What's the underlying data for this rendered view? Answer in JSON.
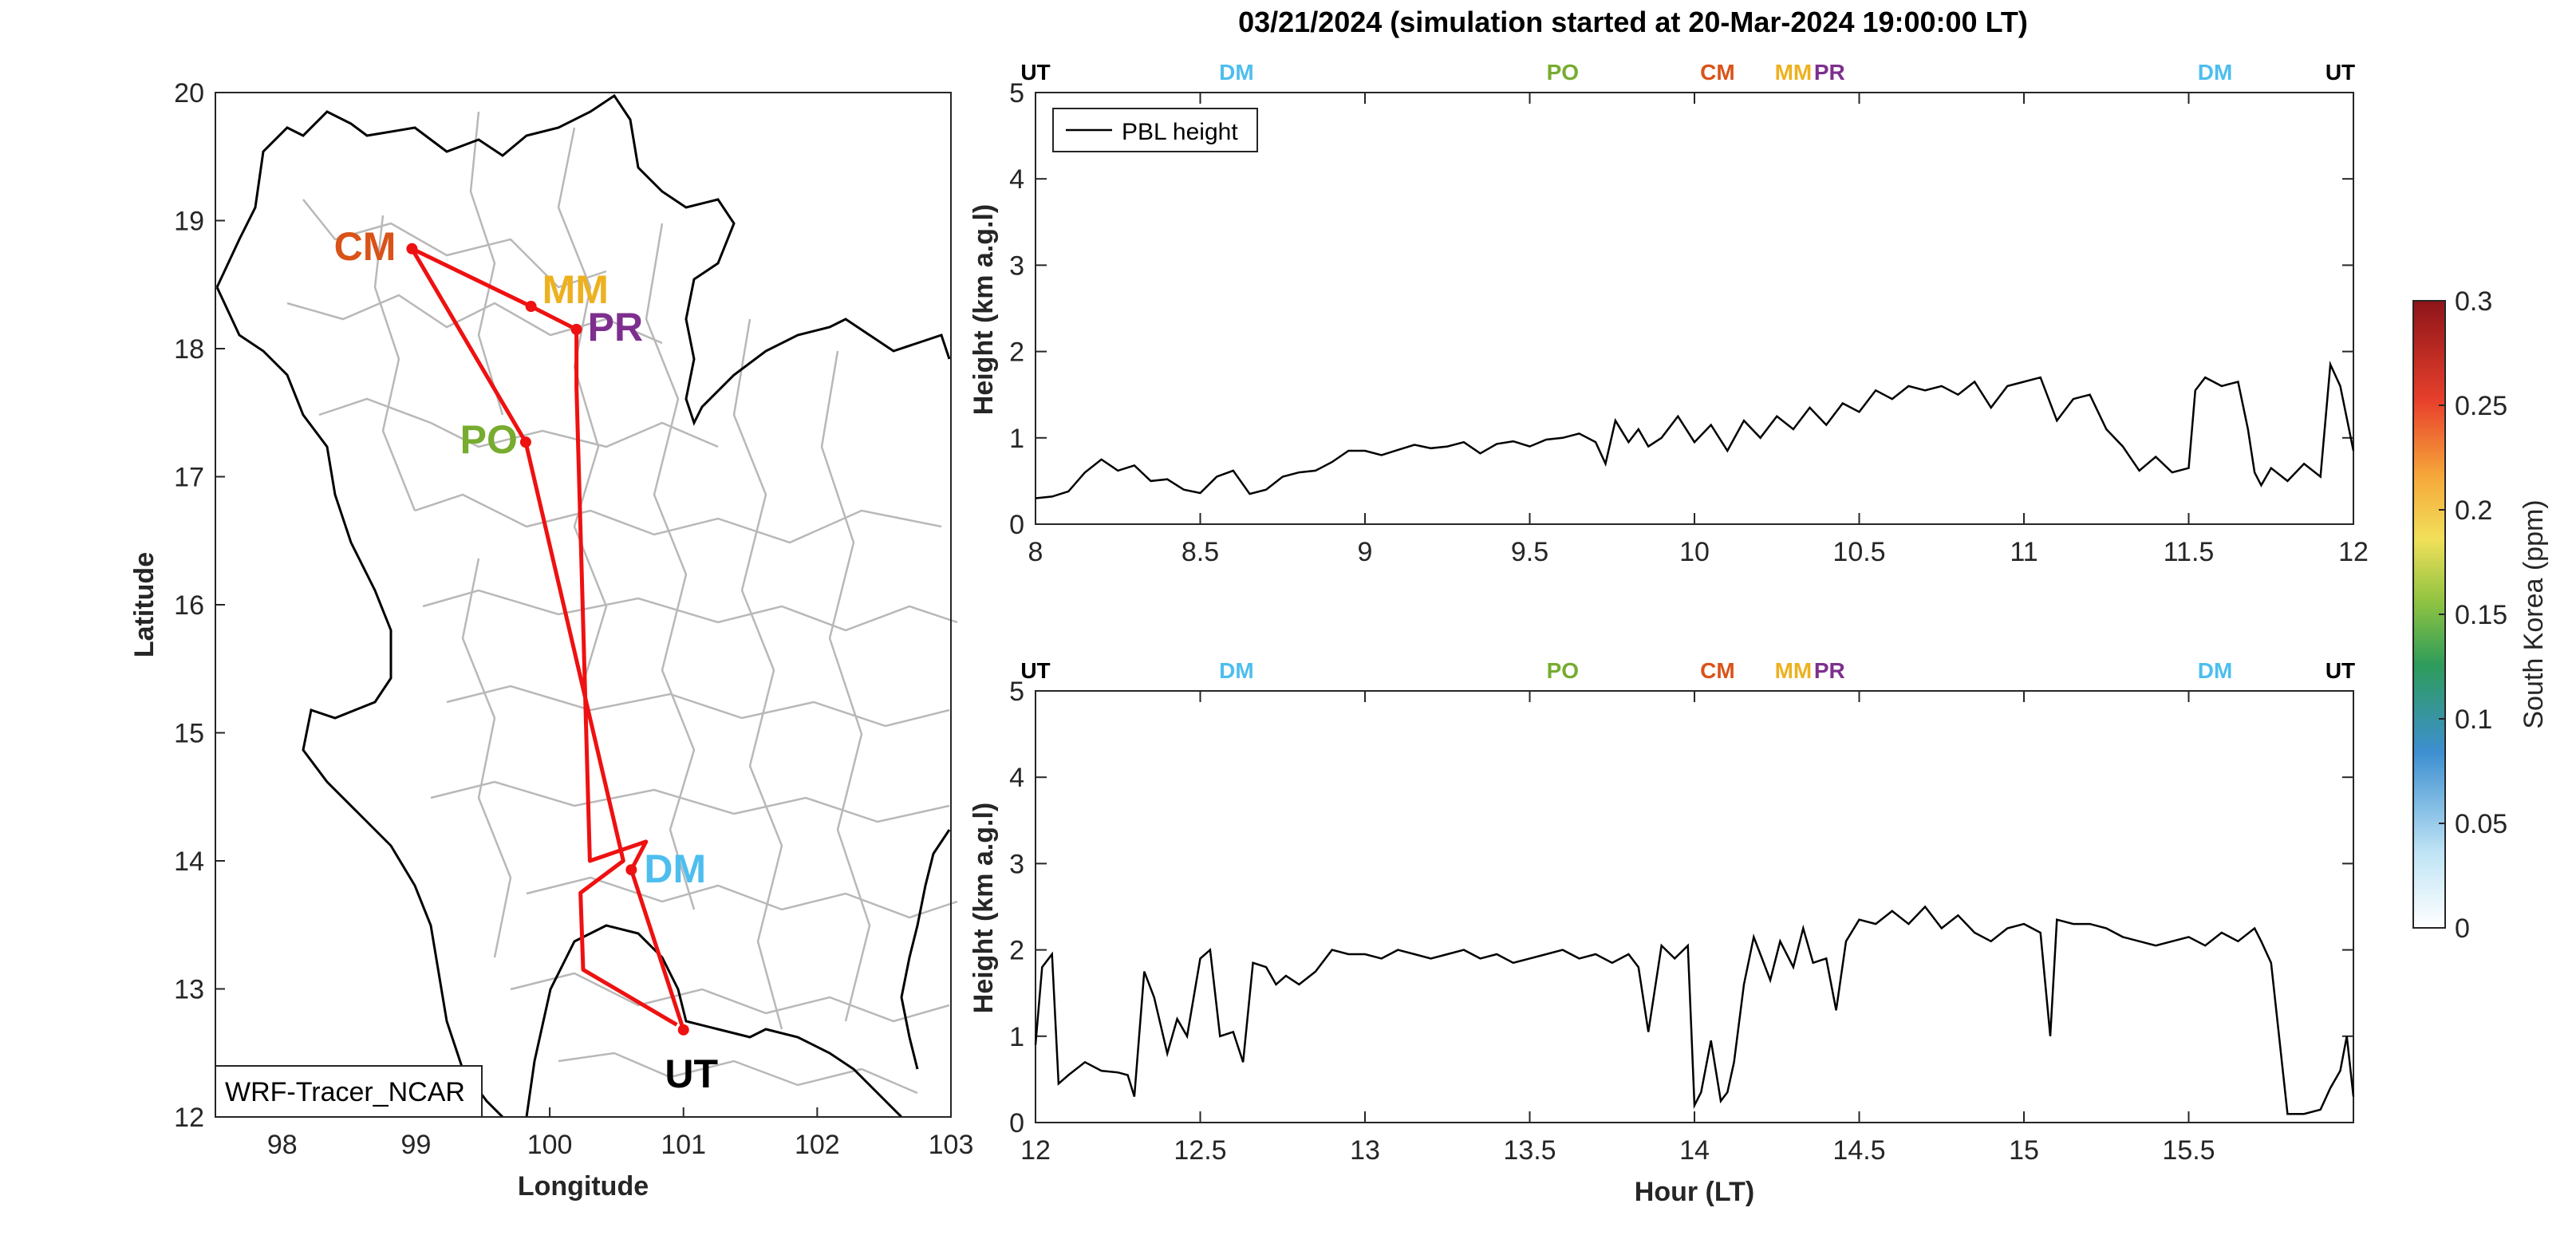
{
  "title": "03/21/2024 (simulation started at 20-Mar-2024 19:00:00 LT)",
  "colors": {
    "UT": "#000000",
    "DM": "#4DBEEE",
    "PO": "#77AC30",
    "CM": "#D95319",
    "MM": "#EDB120",
    "PR": "#7E2F8E",
    "track": "#EE1111"
  },
  "map": {
    "xlabel": "Longitude",
    "ylabel": "Latitude",
    "xlim": [
      97.5,
      103
    ],
    "ylim": [
      12,
      20
    ],
    "xticks": [
      "98",
      "99",
      "100",
      "101",
      "102",
      "103"
    ],
    "yticks": [
      "12",
      "13",
      "14",
      "15",
      "16",
      "17",
      "18",
      "19",
      "20"
    ],
    "box_label": "WRF-Tracer_NCAR",
    "sites": [
      {
        "name": "CM",
        "lon": 98.97,
        "lat": 18.78
      },
      {
        "name": "MM",
        "lon": 99.86,
        "lat": 18.33
      },
      {
        "name": "PR",
        "lon": 100.2,
        "lat": 18.15
      },
      {
        "name": "PO",
        "lon": 99.82,
        "lat": 17.27
      },
      {
        "name": "DM",
        "lon": 100.61,
        "lat": 13.93
      },
      {
        "name": "UT",
        "lon": 101.0,
        "lat": 12.68
      }
    ],
    "track": [
      [
        101.0,
        12.68
      ],
      [
        100.61,
        13.93
      ],
      [
        100.72,
        14.15
      ],
      [
        100.3,
        14.0
      ],
      [
        100.2,
        17.7
      ],
      [
        100.2,
        18.15
      ],
      [
        99.86,
        18.33
      ],
      [
        98.97,
        18.78
      ],
      [
        99.82,
        17.27
      ],
      [
        100.55,
        14.0
      ],
      [
        100.23,
        13.75
      ],
      [
        100.25,
        13.15
      ],
      [
        100.95,
        12.72
      ]
    ]
  },
  "colorbar": {
    "label": "South Korea (ppm)",
    "ticks": [
      "0",
      "0.05",
      "0.1",
      "0.15",
      "0.2",
      "0.25",
      "0.3"
    ],
    "range": [
      0,
      0.3
    ]
  },
  "chart_data": [
    {
      "type": "line",
      "xlim": [
        8,
        12
      ],
      "ylim": [
        0,
        5
      ],
      "xticks": [
        "8",
        "8.5",
        "9",
        "9.5",
        "10",
        "10.5",
        "11",
        "11.5",
        "12"
      ],
      "yticks": [
        "0",
        "1",
        "2",
        "3",
        "4",
        "5"
      ],
      "ylabel": "Height (km a.g.l)",
      "xlabel": "",
      "legend": "top-left",
      "top_markers": [
        {
          "label": "UT",
          "x": 8.0
        },
        {
          "label": "DM",
          "x": 8.61
        },
        {
          "label": "PO",
          "x": 9.6
        },
        {
          "label": "CM",
          "x": 10.07
        },
        {
          "label": "MM",
          "x": 10.3
        },
        {
          "label": "PR",
          "x": 10.41
        },
        {
          "label": "DM",
          "x": 11.58
        },
        {
          "label": "UT",
          "x": 11.96
        }
      ],
      "series": [
        {
          "name": "PBL height",
          "x": [
            8.0,
            8.05,
            8.1,
            8.15,
            8.2,
            8.25,
            8.3,
            8.35,
            8.4,
            8.45,
            8.5,
            8.55,
            8.6,
            8.65,
            8.7,
            8.75,
            8.8,
            8.85,
            8.9,
            8.95,
            9.0,
            9.05,
            9.1,
            9.15,
            9.2,
            9.25,
            9.3,
            9.35,
            9.4,
            9.45,
            9.5,
            9.55,
            9.6,
            9.65,
            9.7,
            9.73,
            9.76,
            9.8,
            9.83,
            9.86,
            9.9,
            9.95,
            10.0,
            10.05,
            10.1,
            10.15,
            10.2,
            10.25,
            10.3,
            10.35,
            10.4,
            10.45,
            10.5,
            10.55,
            10.6,
            10.65,
            10.7,
            10.75,
            10.8,
            10.85,
            10.9,
            10.95,
            11.0,
            11.05,
            11.1,
            11.15,
            11.2,
            11.25,
            11.3,
            11.35,
            11.4,
            11.45,
            11.5,
            11.52,
            11.55,
            11.6,
            11.65,
            11.68,
            11.7,
            11.72,
            11.75,
            11.8,
            11.85,
            11.9,
            11.93,
            11.96,
            12.0
          ],
          "y": [
            0.3,
            0.32,
            0.38,
            0.6,
            0.75,
            0.62,
            0.68,
            0.5,
            0.52,
            0.4,
            0.36,
            0.55,
            0.62,
            0.35,
            0.4,
            0.55,
            0.6,
            0.62,
            0.72,
            0.85,
            0.85,
            0.8,
            0.86,
            0.92,
            0.88,
            0.9,
            0.95,
            0.82,
            0.93,
            0.96,
            0.9,
            0.98,
            1.0,
            1.05,
            0.95,
            0.7,
            1.2,
            0.95,
            1.1,
            0.9,
            1.0,
            1.25,
            0.95,
            1.15,
            0.85,
            1.2,
            1.0,
            1.25,
            1.1,
            1.35,
            1.15,
            1.4,
            1.3,
            1.55,
            1.45,
            1.6,
            1.55,
            1.6,
            1.5,
            1.65,
            1.35,
            1.6,
            1.65,
            1.7,
            1.2,
            1.45,
            1.5,
            1.1,
            0.9,
            0.62,
            0.78,
            0.6,
            0.65,
            1.55,
            1.7,
            1.6,
            1.65,
            1.1,
            0.6,
            0.45,
            0.65,
            0.5,
            0.7,
            0.55,
            1.85,
            1.6,
            0.85
          ]
        }
      ]
    },
    {
      "type": "line",
      "xlim": [
        12,
        16
      ],
      "ylim": [
        0,
        5
      ],
      "xticks": [
        "12",
        "12.5",
        "13",
        "13.5",
        "14",
        "14.5",
        "15",
        "15.5"
      ],
      "yticks": [
        "0",
        "1",
        "2",
        "3",
        "4",
        "5"
      ],
      "ylabel": "Height (km a.g.l)",
      "xlabel": "Hour (LT)",
      "top_markers": [
        {
          "label": "UT",
          "x": 12.0
        },
        {
          "label": "DM",
          "x": 12.61
        },
        {
          "label": "PO",
          "x": 13.6
        },
        {
          "label": "CM",
          "x": 14.07
        },
        {
          "label": "MM",
          "x": 14.3
        },
        {
          "label": "PR",
          "x": 14.41
        },
        {
          "label": "DM",
          "x": 15.58
        },
        {
          "label": "UT",
          "x": 15.96
        }
      ],
      "series": [
        {
          "name": "PBL height",
          "x": [
            12.0,
            12.02,
            12.05,
            12.07,
            12.1,
            12.15,
            12.2,
            12.25,
            12.28,
            12.3,
            12.33,
            12.36,
            12.4,
            12.43,
            12.46,
            12.5,
            12.53,
            12.56,
            12.6,
            12.63,
            12.66,
            12.7,
            12.73,
            12.76,
            12.8,
            12.85,
            12.9,
            12.95,
            13.0,
            13.05,
            13.1,
            13.15,
            13.2,
            13.25,
            13.3,
            13.35,
            13.4,
            13.45,
            13.5,
            13.55,
            13.6,
            13.65,
            13.7,
            13.75,
            13.8,
            13.83,
            13.86,
            13.9,
            13.94,
            13.98,
            14.0,
            14.02,
            14.05,
            14.08,
            14.1,
            14.12,
            14.15,
            14.18,
            14.2,
            14.23,
            14.26,
            14.3,
            14.33,
            14.36,
            14.4,
            14.43,
            14.46,
            14.5,
            14.55,
            14.6,
            14.65,
            14.7,
            14.75,
            14.8,
            14.85,
            14.9,
            14.95,
            15.0,
            15.05,
            15.08,
            15.1,
            15.15,
            15.2,
            15.25,
            15.3,
            15.35,
            15.4,
            15.45,
            15.5,
            15.55,
            15.6,
            15.65,
            15.7,
            15.72,
            15.75,
            15.8,
            15.85,
            15.9,
            15.93,
            15.96,
            15.98,
            16.0
          ],
          "y": [
            0.9,
            1.8,
            1.95,
            0.45,
            0.55,
            0.7,
            0.6,
            0.58,
            0.55,
            0.3,
            1.75,
            1.45,
            0.8,
            1.2,
            1.0,
            1.9,
            2.0,
            1.0,
            1.05,
            0.7,
            1.85,
            1.8,
            1.6,
            1.7,
            1.6,
            1.75,
            2.0,
            1.95,
            1.95,
            1.9,
            2.0,
            1.95,
            1.9,
            1.95,
            2.0,
            1.9,
            1.95,
            1.85,
            1.9,
            1.95,
            2.0,
            1.9,
            1.95,
            1.85,
            1.95,
            1.8,
            1.05,
            2.05,
            1.9,
            2.05,
            0.2,
            0.35,
            0.95,
            0.25,
            0.35,
            0.7,
            1.6,
            2.15,
            1.95,
            1.65,
            2.1,
            1.8,
            2.25,
            1.85,
            1.9,
            1.3,
            2.1,
            2.35,
            2.3,
            2.45,
            2.3,
            2.5,
            2.25,
            2.4,
            2.2,
            2.1,
            2.25,
            2.3,
            2.2,
            1.0,
            2.35,
            2.3,
            2.3,
            2.25,
            2.15,
            2.1,
            2.05,
            2.1,
            2.15,
            2.05,
            2.2,
            2.1,
            2.25,
            2.1,
            1.85,
            0.1,
            0.1,
            0.15,
            0.4,
            0.6,
            1.0,
            0.3
          ]
        }
      ]
    }
  ]
}
